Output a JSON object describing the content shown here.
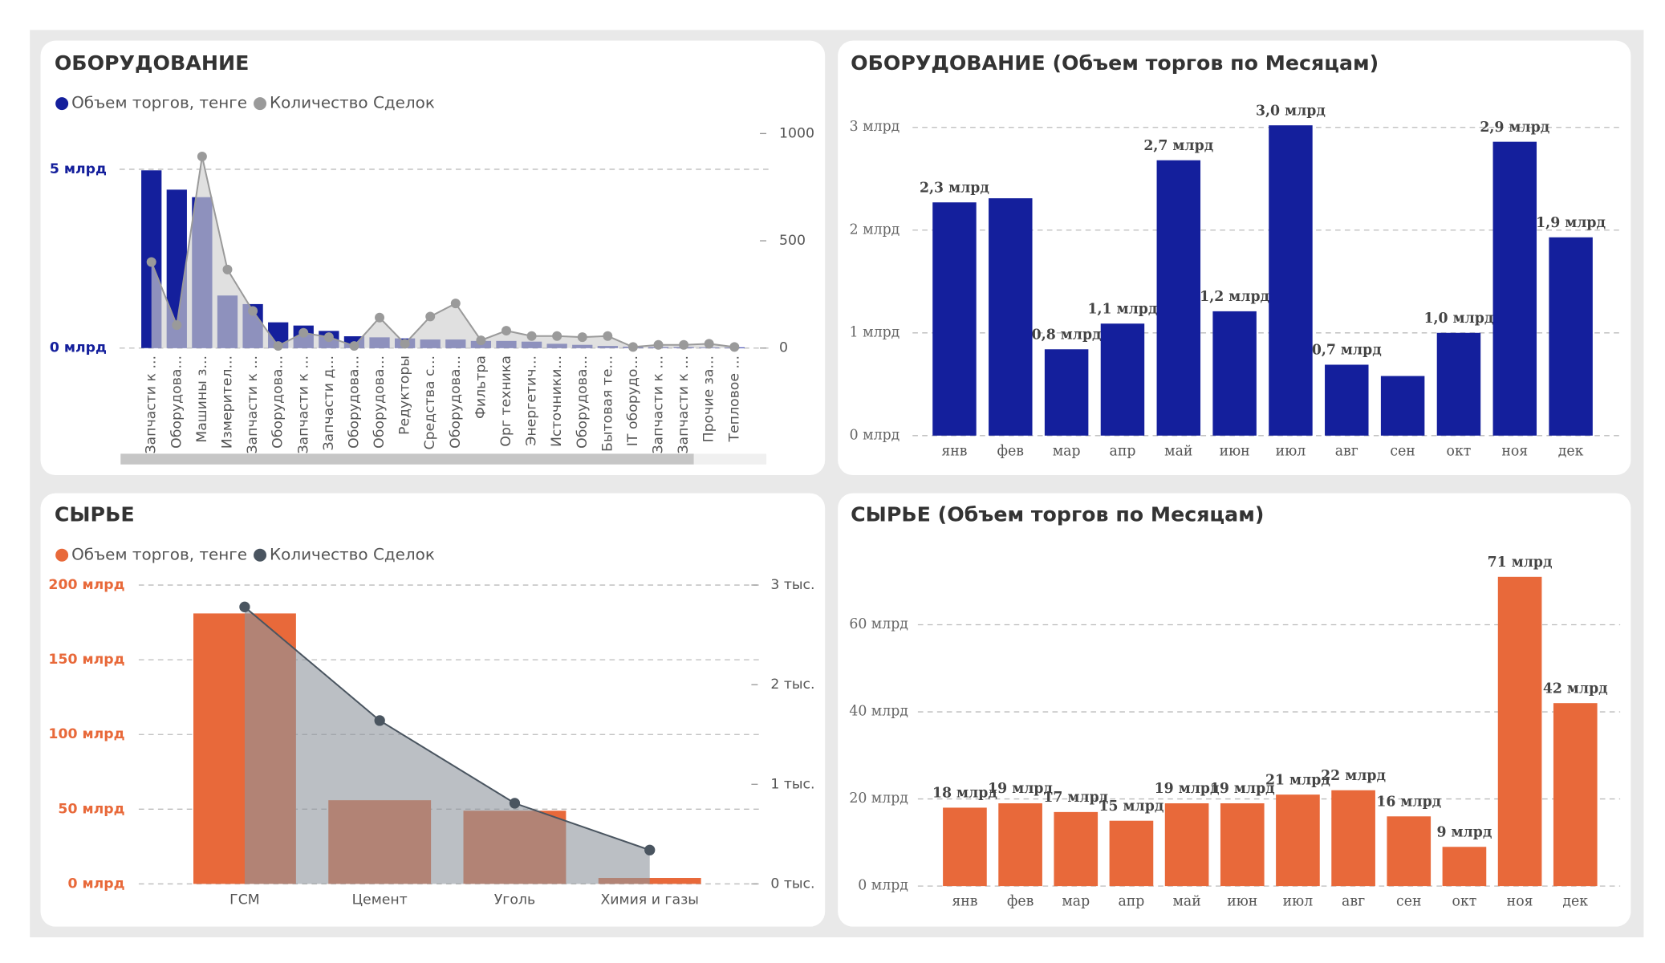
{
  "chart_data": [
    {
      "type": "combo",
      "title": "ОБОРУДОВАНИЕ",
      "categories": [
        "Запчасти к ...",
        "Оборудова...",
        "Машины з...",
        "Измерител...",
        "Запчасти к ...",
        "Оборудова...",
        "Запчасти к ...",
        "Запчасти д...",
        "Оборудова...",
        "Оборудова...",
        "Редукторы",
        "Средства с...",
        "Оборудова...",
        "Фильтра",
        "Орг техника",
        "Энергетич...",
        "Источники...",
        "Оборудова...",
        "Бытовая те...",
        "IT оборудо...",
        "Запчасти к ...",
        "Запчасти к ...",
        "Прочие за...",
        "Тепловое ..."
      ],
      "series": [
        {
          "name": "Объем торгов, тенге",
          "type": "bar",
          "color": "#141f9c",
          "values": [
            4.97,
            4.43,
            4.22,
            1.47,
            1.23,
            0.72,
            0.63,
            0.48,
            0.33,
            0.3,
            0.27,
            0.24,
            0.24,
            0.2,
            0.2,
            0.18,
            0.12,
            0.09,
            0.06,
            0.04,
            0.03,
            0.03,
            0.02,
            0.02
          ]
        },
        {
          "name": "Количество Сделок",
          "type": "area",
          "axis": "y2",
          "color": "#9a9a9a",
          "values": [
            401,
            107,
            893,
            366,
            173,
            10,
            71,
            51,
            10,
            142,
            20,
            147,
            208,
            36,
            81,
            56,
            56,
            51,
            56,
            5,
            15,
            15,
            20,
            5
          ]
        }
      ],
      "ylim": [
        0,
        6
      ],
      "yticks": [
        {
          "value": 0,
          "label": "0 млрд"
        },
        {
          "value": 5,
          "label": "5 млрд"
        }
      ],
      "y2lim": [
        0,
        1000
      ],
      "y2ticks": [
        0,
        500,
        1000
      ],
      "grid": true
    },
    {
      "type": "bar",
      "title": "ОБОРУДОВАНИЕ (Объем торгов по Месяцам)",
      "categories": [
        "янв",
        "фев",
        "мар",
        "апр",
        "май",
        "июн",
        "июл",
        "авг",
        "сен",
        "окт",
        "ноя",
        "дек"
      ],
      "values": [
        2.27,
        2.31,
        0.84,
        1.09,
        2.68,
        1.21,
        3.02,
        0.69,
        0.58,
        1.0,
        2.86,
        1.93
      ],
      "value_labels": [
        "2,3 млрд",
        null,
        "0,8 млрд",
        "1,1 млрд",
        "2,7 млрд",
        "1,2 млрд",
        "3,0 млрд",
        "0,7 млрд",
        null,
        "1,0 млрд",
        "2,9 млрд",
        "1,9 млрд"
      ],
      "color": "#141f9c",
      "ylim": [
        0,
        3.2
      ],
      "yticks": [
        {
          "value": 0,
          "label": "0 млрд"
        },
        {
          "value": 1,
          "label": "1 млрд"
        },
        {
          "value": 2,
          "label": "2 млрд"
        },
        {
          "value": 3,
          "label": "3 млрд"
        }
      ],
      "grid": true
    },
    {
      "type": "combo",
      "title": "СЫРЬЕ",
      "categories": [
        "ГСМ",
        "Цемент",
        "Уголь",
        "Химия и газы"
      ],
      "series": [
        {
          "name": "Объем торгов, тенге",
          "type": "bar",
          "color": "#e8693a",
          "values": [
            181,
            56,
            49,
            4
          ]
        },
        {
          "name": "Количество Сделок",
          "type": "area",
          "axis": "y2",
          "color": "#4a5560",
          "values": [
            2.78,
            1.64,
            0.81,
            0.34
          ]
        }
      ],
      "ylim": [
        0,
        200
      ],
      "yticks": [
        {
          "value": 0,
          "label": "0 млрд"
        },
        {
          "value": 50,
          "label": "50 млрд"
        },
        {
          "value": 100,
          "label": "100 млрд"
        },
        {
          "value": 150,
          "label": "150 млрд"
        },
        {
          "value": 200,
          "label": "200 млрд"
        }
      ],
      "y2lim": [
        0,
        3
      ],
      "y2ticks": [
        {
          "value": 0,
          "label": "0 тыс."
        },
        {
          "value": 1,
          "label": "1 тыс."
        },
        {
          "value": 2,
          "label": "2 тыс."
        },
        {
          "value": 3,
          "label": "3 тыс."
        }
      ],
      "grid": true
    },
    {
      "type": "bar",
      "title": "СЫРЬЕ (Объем торгов по Месяцам)",
      "categories": [
        "янв",
        "фев",
        "мар",
        "апр",
        "май",
        "июн",
        "июл",
        "авг",
        "сен",
        "окт",
        "ноя",
        "дек"
      ],
      "values": [
        18,
        19,
        17,
        15,
        19,
        19,
        21,
        22,
        16,
        9,
        71,
        42
      ],
      "value_labels": [
        "18 млрд",
        "19 млрд",
        "17 млрд",
        "15 млрд",
        "19 млрд",
        "19 млрд",
        "21 млрд",
        "22 млрд",
        "16 млрд",
        "9 млрд",
        "71 млрд",
        "42 млрд"
      ],
      "color": "#e8693a",
      "ylim": [
        0,
        80
      ],
      "yticks": [
        {
          "value": 0,
          "label": "0 млрд"
        },
        {
          "value": 20,
          "label": "20 млрд"
        },
        {
          "value": 40,
          "label": "40 млрд"
        },
        {
          "value": 60,
          "label": "60 млрд"
        }
      ],
      "grid": true
    }
  ]
}
